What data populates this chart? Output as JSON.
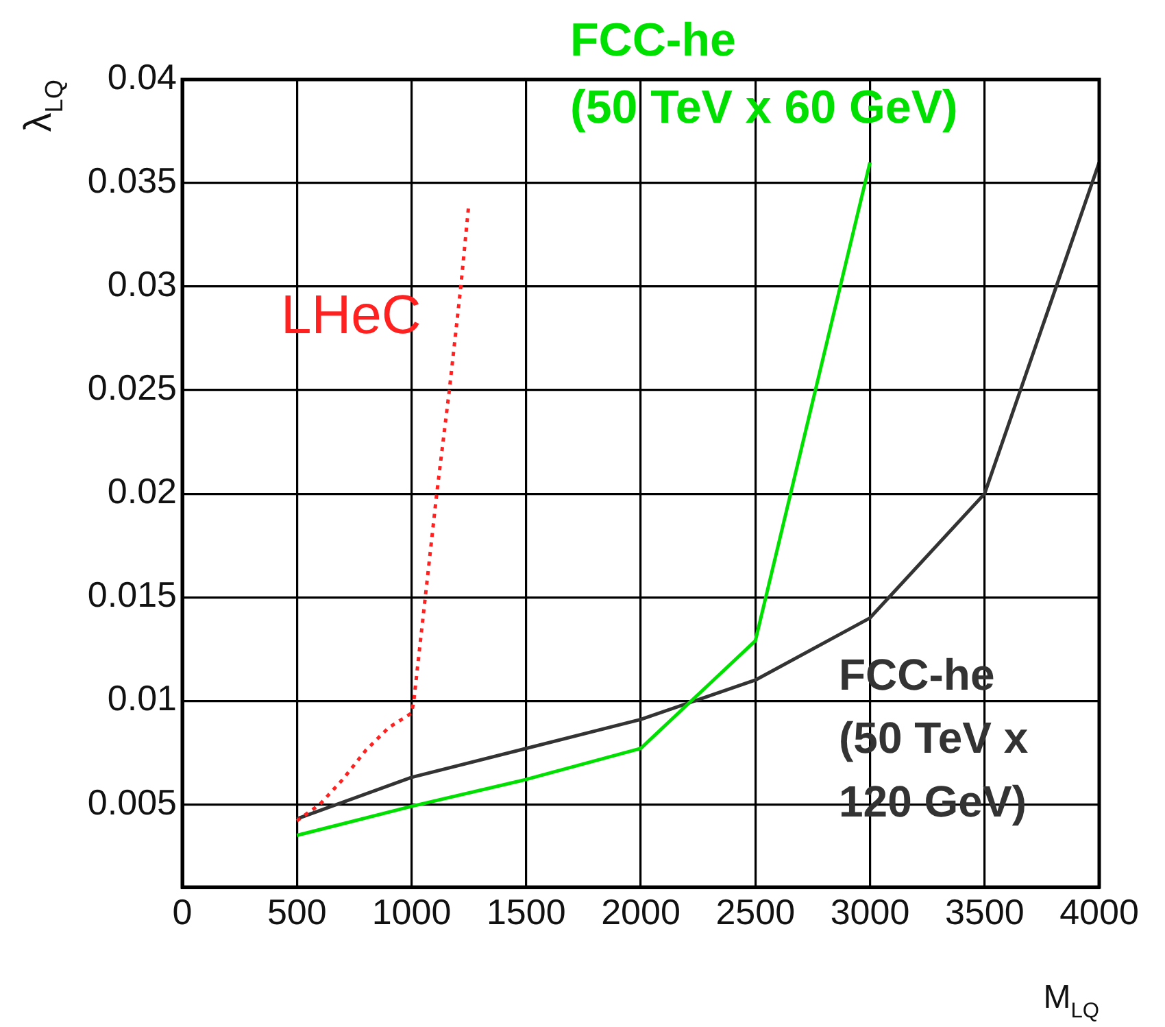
{
  "chart_data": {
    "type": "line",
    "xlabel": "M$_{LQ}$",
    "ylabel": "λ$_{LQ}$",
    "xlim": [
      0,
      4000
    ],
    "xticks": [
      0,
      500,
      1000,
      1500,
      2000,
      2500,
      3000,
      3500,
      4000
    ],
    "ylim": [
      0.001,
      0.04
    ],
    "yticks": [
      0.005,
      0.01,
      0.015,
      0.02,
      0.025,
      0.03,
      0.035,
      0.04
    ],
    "grid": true,
    "legend": false,
    "marker": "none",
    "series": [
      {
        "name": "LHeC",
        "color": "#ff2020",
        "line_style": "dotted",
        "x": [
          500,
          600,
          700,
          800,
          900,
          1000,
          1010,
          1060,
          1110,
          1165,
          1215,
          1250
        ],
        "values": [
          0.0042,
          0.005,
          0.0062,
          0.0076,
          0.0087,
          0.0094,
          0.01,
          0.015,
          0.02,
          0.025,
          0.03,
          0.034
        ]
      },
      {
        "name": "FCC-he (50 TeV x 60 GeV)",
        "color": "#00e000",
        "line_style": "solid",
        "x": [
          500,
          1000,
          1500,
          2000,
          2500,
          3000
        ],
        "values": [
          0.0035,
          0.0049,
          0.0062,
          0.0077,
          0.0129,
          0.036
        ]
      },
      {
        "name": "FCC-he (50 TeV x 120 GeV)",
        "color": "#333333",
        "line_style": "solid",
        "x": [
          500,
          1000,
          2000,
          2500,
          3000,
          3500,
          4000
        ],
        "values": [
          0.0043,
          0.0063,
          0.0091,
          0.011,
          0.014,
          0.02,
          0.036
        ]
      }
    ]
  }
}
